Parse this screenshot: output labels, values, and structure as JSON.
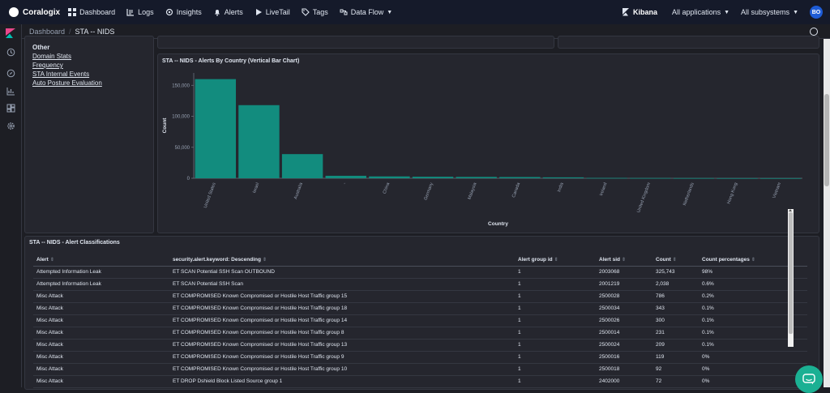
{
  "topnav": {
    "brand": "Coralogix",
    "items": [
      {
        "label": "Dashboard",
        "icon": "dashboard-icon"
      },
      {
        "label": "Logs",
        "icon": "logs-icon"
      },
      {
        "label": "Insights",
        "icon": "insights-icon"
      },
      {
        "label": "Alerts",
        "icon": "bell-icon"
      },
      {
        "label": "LiveTail",
        "icon": "play-icon"
      },
      {
        "label": "Tags",
        "icon": "tag-icon"
      },
      {
        "label": "Data Flow",
        "icon": "data-flow-icon"
      }
    ],
    "kibana_label": "Kibana",
    "applications": "All applications",
    "subsystems": "All subsystems",
    "avatar_initials": "BO"
  },
  "breadcrumb": {
    "root": "Dashboard",
    "current": "STA -- NIDS"
  },
  "links_panel": {
    "heading": "Other",
    "links": [
      "Domain Stats",
      "Frequency",
      "STA Internal Events",
      "Auto Posture Evaluation"
    ]
  },
  "chart_panel": {
    "title": "STA -- NIDS - Alerts By Country (Vertical Bar Chart)"
  },
  "chart_data": {
    "type": "bar",
    "title": "STA -- NIDS - Alerts By Country (Vertical Bar Chart)",
    "xlabel": "Country",
    "ylabel": "Count",
    "categories": [
      "United States",
      "Israel",
      "Australia",
      "-",
      "China",
      "Germany",
      "Malaysia",
      "Canada",
      "India",
      "Ireland",
      "United Kingdom",
      "Netherlands",
      "Hong Kong",
      "Vietnam"
    ],
    "values": [
      160000,
      118000,
      39000,
      4000,
      3000,
      2500,
      2200,
      2000,
      1500,
      600,
      400,
      300,
      200,
      150
    ],
    "yticks": [
      "0",
      "50,000",
      "100,000",
      "150,000"
    ],
    "ytick_values": [
      0,
      50000,
      100000,
      150000
    ],
    "ylim": [
      0,
      170000
    ],
    "bar_color": "#128c7e",
    "grid": false
  },
  "table_panel": {
    "title": "STA -- NIDS - Alert Classifications",
    "headers": [
      "Alert",
      "security.alert.keyword: Descending",
      "Alert group id",
      "Alert sid",
      "Count",
      "Count percentages"
    ],
    "rows": [
      [
        "Attempted Information Leak",
        "ET SCAN Potential SSH Scan OUTBOUND",
        "1",
        "2003068",
        "325,743",
        "98%"
      ],
      [
        "Attempted Information Leak",
        "ET SCAN Potential SSH Scan",
        "1",
        "2001219",
        "2,038",
        "0.6%"
      ],
      [
        "Misc Attack",
        "ET COMPROMISED Known Compromised or Hostile Host Traffic group 15",
        "1",
        "2500028",
        "786",
        "0.2%"
      ],
      [
        "Misc Attack",
        "ET COMPROMISED Known Compromised or Hostile Host Traffic group 18",
        "1",
        "2500034",
        "343",
        "0.1%"
      ],
      [
        "Misc Attack",
        "ET COMPROMISED Known Compromised or Hostile Host Traffic group 14",
        "1",
        "2500026",
        "300",
        "0.1%"
      ],
      [
        "Misc Attack",
        "ET COMPROMISED Known Compromised or Hostile Host Traffic group 8",
        "1",
        "2500014",
        "231",
        "0.1%"
      ],
      [
        "Misc Attack",
        "ET COMPROMISED Known Compromised or Hostile Host Traffic group 13",
        "1",
        "2500024",
        "209",
        "0.1%"
      ],
      [
        "Misc Attack",
        "ET COMPROMISED Known Compromised or Hostile Host Traffic group 9",
        "1",
        "2500016",
        "119",
        "0%"
      ],
      [
        "Misc Attack",
        "ET COMPROMISED Known Compromised or Hostile Host Traffic group 10",
        "1",
        "2500018",
        "92",
        "0%"
      ],
      [
        "Misc Attack",
        "ET DROP Dshield Block Listed Source group 1",
        "1",
        "2402000",
        "72",
        "0%"
      ]
    ]
  },
  "colors": {
    "accent": "#1e5cd6",
    "bar": "#128c7e",
    "chat": "#1bb093"
  }
}
